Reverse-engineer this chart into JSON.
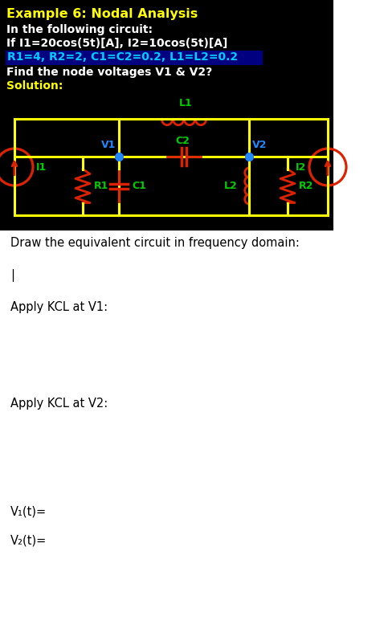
{
  "title": "Example 6: Nodal Analysis",
  "line1": "In the following circuit:",
  "line2": "If I1=20cos(5t)[A], I2=10cos(5t)[A]",
  "line3": "R1=4, R2=2, C1=C2=0.2, L1=L2=0.2",
  "line4": "Find the node voltages V1 & V2?",
  "line5": "Solution:",
  "bg_color": "#000000",
  "title_color": "#ffff00",
  "text_color": "#ffffff",
  "highlight_color": "#00ccff",
  "highlight_bg": "#000080",
  "wire_color": "#ffff00",
  "comp_color": "#dd2200",
  "label_color": "#00cc00",
  "node_color": "#2288ff",
  "below_text1": "Draw the equivalent circuit in frequency domain:",
  "below_text2": "|",
  "below_text3": "Apply KCL at V1:",
  "below_text4": "Apply KCL at V2:",
  "below_text5": "V₁(t)=",
  "below_text6": "V₂(t)="
}
